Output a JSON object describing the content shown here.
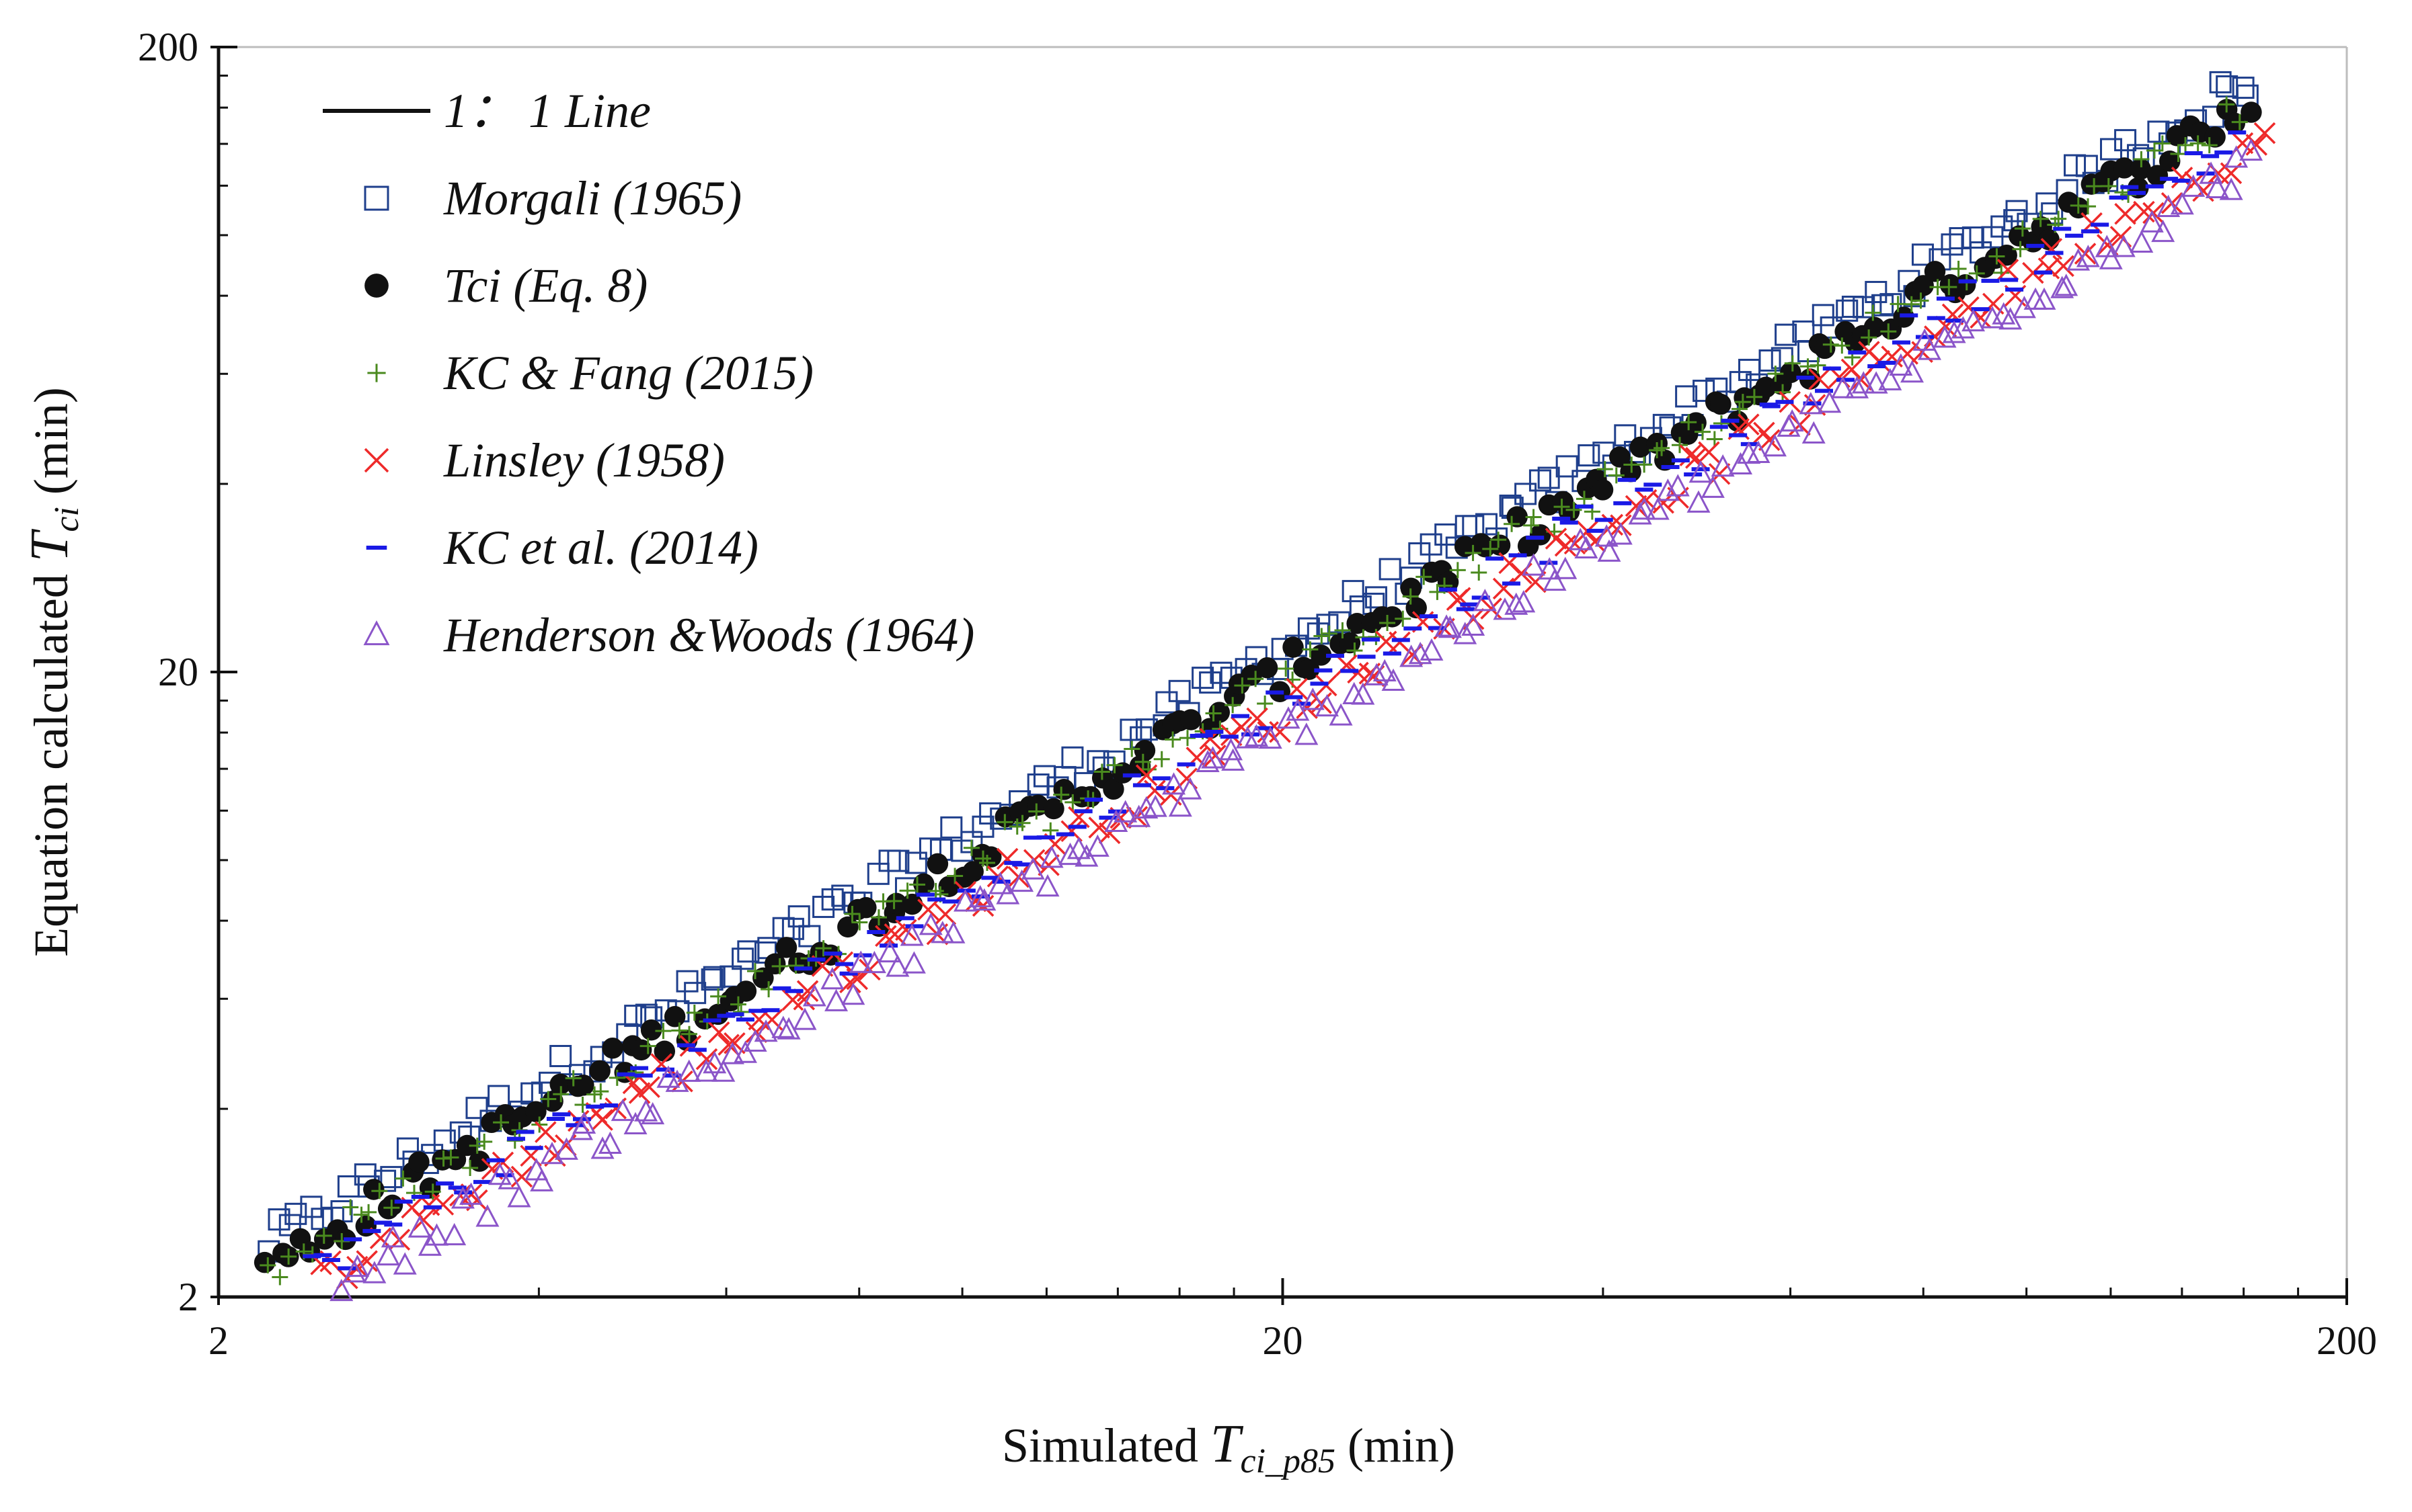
{
  "chart_data": {
    "type": "scatter",
    "title": "",
    "xlabel_prefix": "Simulated ",
    "xlabel_var": "T",
    "xlabel_sub": "ci_p85",
    "xlabel_suffix": " (min)",
    "ylabel_prefix": "Equation calculated ",
    "ylabel_var": "T",
    "ylabel_sub": "ci",
    "ylabel_suffix": " (min)",
    "x_scale": "log",
    "y_scale": "log",
    "xlim": [
      2,
      200
    ],
    "ylim": [
      2,
      200
    ],
    "x_ticks": [
      2,
      20,
      200
    ],
    "y_ticks": [
      2,
      20,
      200
    ],
    "x_tick_labels": [
      "2",
      "20",
      "200"
    ],
    "y_tick_labels": [
      "2",
      "20",
      "200"
    ],
    "grid": false,
    "legend_position": "top-left",
    "reference_line": {
      "label": "1： 1 Line",
      "from": [
        2,
        200
      ],
      "to": [
        2,
        200
      ]
    },
    "series": [
      {
        "name": "Morgali (1965)",
        "marker": "square-open",
        "color": "#1f3f8c",
        "ratio": 1.09,
        "xmin": 2.2,
        "xmax": 165,
        "count": 190
      },
      {
        "name": "Tci (Eq. 8)",
        "marker": "circle-filled",
        "color": "#111111",
        "ratio": 1.0,
        "xmin": 2.2,
        "xmax": 165,
        "count": 170
      },
      {
        "name": "KC & Fang (2015)",
        "marker": "plus",
        "color": "#4a8a1e",
        "ratio": 0.985,
        "xmin": 2.2,
        "xmax": 160,
        "count": 170
      },
      {
        "name": "Linsley (1958)",
        "marker": "x",
        "color": "#ee2a2a",
        "ratio": 0.86,
        "xmin": 2.4,
        "xmax": 170,
        "count": 160
      },
      {
        "name": "KC et al. (2014)",
        "marker": "dash",
        "color": "#1a1ae6",
        "ratio": 0.9,
        "xmin": 2.4,
        "xmax": 160,
        "count": 160
      },
      {
        "name": "Henderson &Woods (1964)",
        "marker": "triangle-open",
        "color": "#8b55c9",
        "ratio": 0.8,
        "xmin": 2.5,
        "xmax": 165,
        "count": 170
      }
    ]
  }
}
